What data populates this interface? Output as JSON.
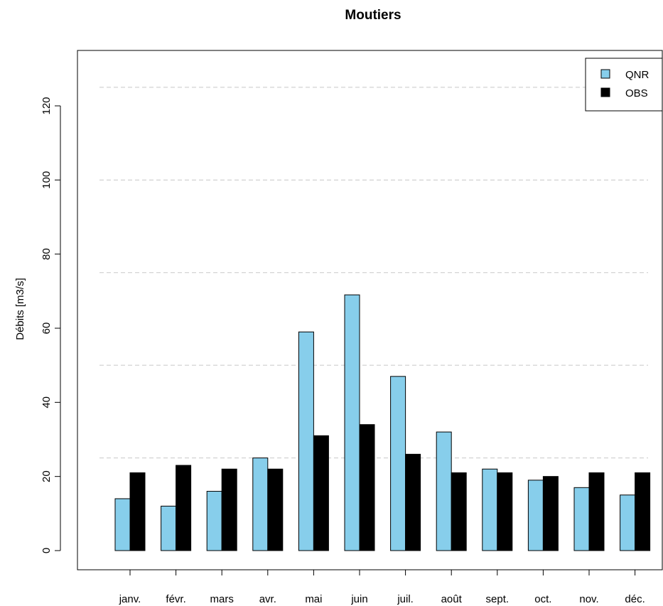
{
  "chart_data": {
    "type": "bar",
    "title": "Moutiers",
    "xlabel": "",
    "ylabel": "Débits [m3/s]",
    "categories": [
      "janv.",
      "févr.",
      "mars",
      "avr.",
      "mai",
      "juin",
      "juil.",
      "août",
      "sept.",
      "oct.",
      "nov.",
      "déc."
    ],
    "series": [
      {
        "name": "QNR",
        "color": "#87ceeb",
        "values": [
          14,
          12,
          16,
          25,
          59,
          69,
          47,
          32,
          22,
          19,
          17,
          15
        ]
      },
      {
        "name": "OBS",
        "color": "#000000",
        "values": [
          21,
          23,
          22,
          22,
          31,
          34,
          26,
          21,
          21,
          20,
          21,
          21
        ]
      }
    ],
    "yticks": [
      0,
      20,
      40,
      60,
      80,
      100,
      120
    ],
    "ylim": [
      -5,
      135
    ],
    "reference_lines": [
      25,
      50,
      75,
      100,
      125
    ],
    "grid": "dashed horizontal reference lines",
    "legend_position": "top-right"
  }
}
